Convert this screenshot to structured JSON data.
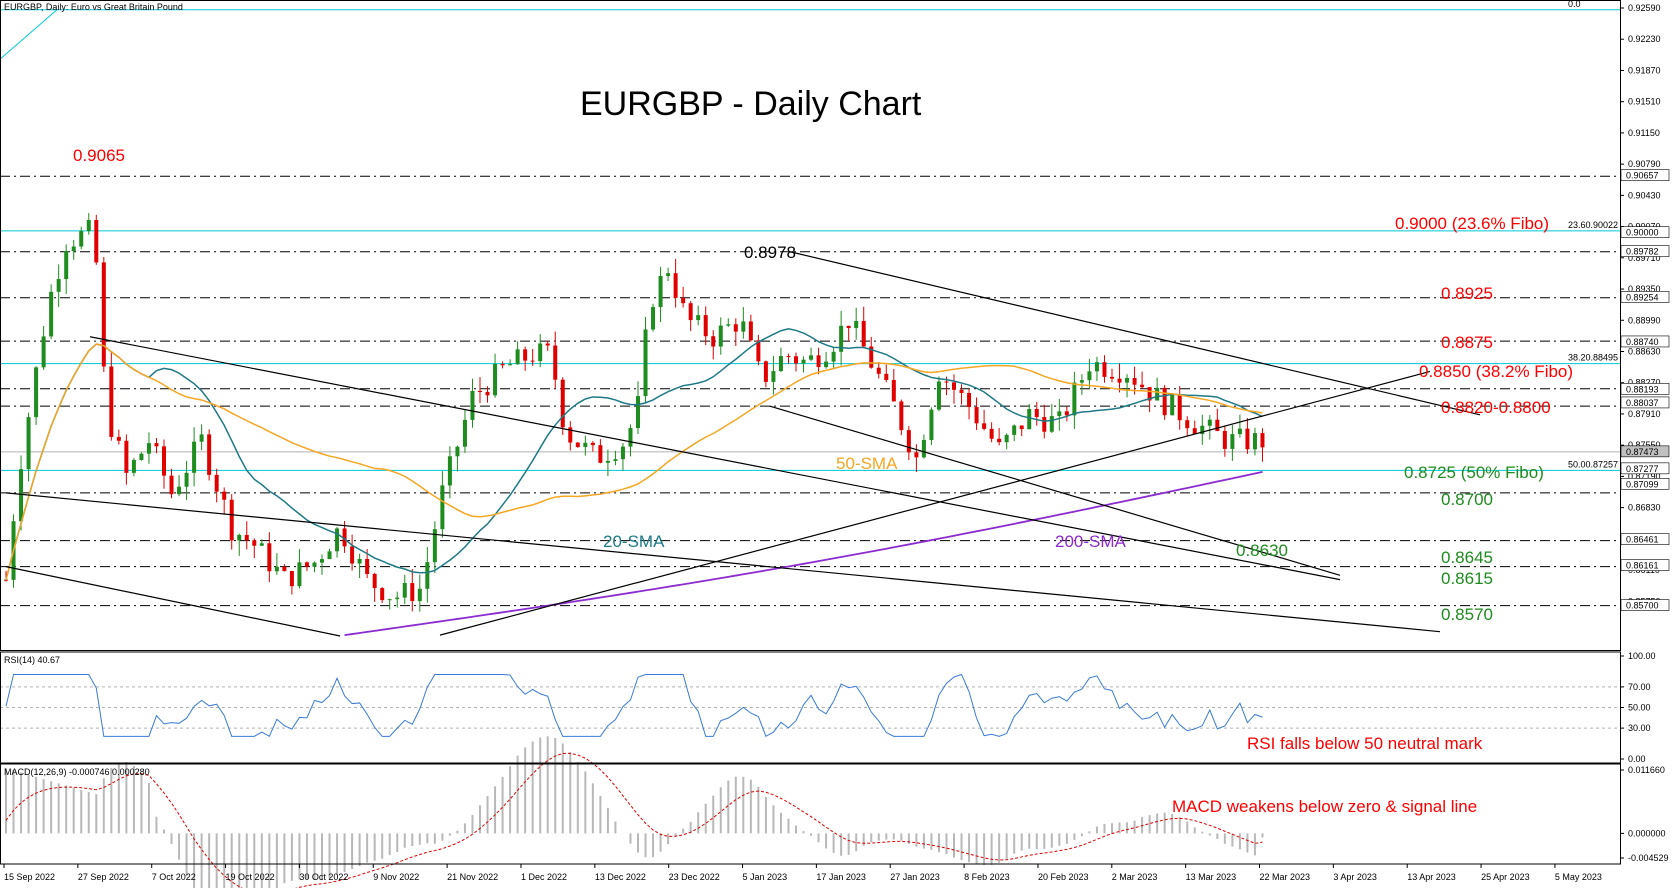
{
  "chart_data": [
    {
      "type": "candlestick",
      "header": "EURGBP, Daily:  Euro vs Great Britain Pound",
      "title": "EURGBP - Daily Chart",
      "ylim": [
        0.8535,
        0.9259
      ],
      "y_ticks": [
        "0.92590",
        "0.92230",
        "0.91870",
        "0.91510",
        "0.91150",
        "0.90790",
        "0.90430",
        "0.90070",
        "0.89710",
        "0.89350",
        "0.88990",
        "0.88630",
        "0.88270",
        "0.87910",
        "0.87550",
        "0.87190",
        "0.86830",
        "0.86470",
        "0.86110",
        "0.85750"
      ],
      "x_ticks": [
        "15 Sep 2022",
        "27 Sep 2022",
        "7 Oct 2022",
        "19 Oct 2022",
        "30 Oct 2022",
        "9 Nov 2022",
        "21 Nov 2022",
        "1 Dec 2022",
        "13 Dec 2022",
        "23 Dec 2022",
        "5 Jan 2023",
        "17 Jan 2023",
        "27 Jan 2023",
        "8 Feb 2023",
        "20 Feb 2023",
        "2 Mar 2023",
        "13 Mar 2023",
        "22 Mar 2023",
        "3 Apr 2023",
        "13 Apr 2023",
        "25 Apr 2023",
        "5 May 2023"
      ],
      "price_labels": [
        {
          "text": "0.90657",
          "value": 0.90657,
          "bg": "#ffffff"
        },
        {
          "text": "0.90000",
          "value": 0.9,
          "bg": "#ffffff"
        },
        {
          "text": "0.89782",
          "value": 0.89782,
          "bg": "#ffffff"
        },
        {
          "text": "0.89254",
          "value": 0.89254,
          "bg": "#ffffff"
        },
        {
          "text": "0.88740",
          "value": 0.8874,
          "bg": "#ffffff"
        },
        {
          "text": "0.88193",
          "value": 0.88193,
          "bg": "#ffffff"
        },
        {
          "text": "0.88037",
          "value": 0.88037,
          "bg": "#ffffff"
        },
        {
          "text": "0.87473",
          "value": 0.87473,
          "bg": "#c0c0c0"
        },
        {
          "text": "0.87277",
          "value": 0.87277,
          "bg": "#ffffff"
        },
        {
          "text": "0.87099",
          "value": 0.87099,
          "bg": "#ffffff"
        },
        {
          "text": "0.86461",
          "value": 0.86461,
          "bg": "#ffffff"
        },
        {
          "text": "0.86161",
          "value": 0.86161,
          "bg": "#ffffff"
        },
        {
          "text": "0.85700",
          "value": 0.857,
          "bg": "#ffffff"
        }
      ],
      "support_resistance": [
        0.9065,
        0.8978,
        0.8925,
        0.8875,
        0.882,
        0.88,
        0.87,
        0.8645,
        0.8615,
        0.857
      ],
      "fibo_levels": [
        {
          "value": 0.9257,
          "label": "0.0"
        },
        {
          "value": 0.9002,
          "label": "23.60.90022"
        },
        {
          "value": 0.8849,
          "label": "38.20.88495"
        },
        {
          "value": 0.8726,
          "label": "50.00.87257"
        }
      ],
      "annotations": [
        {
          "text": "0.9065",
          "color": "#ff0000"
        },
        {
          "text": "0.8978",
          "color": "#000000"
        },
        {
          "text": "0.9000 (23.6% Fibo)",
          "color": "#ff0000"
        },
        {
          "text": "0.8925",
          "color": "#ff0000"
        },
        {
          "text": "0.8875",
          "color": "#ff0000"
        },
        {
          "text": "0.8850 (38.2% Fibo)",
          "color": "#ff0000"
        },
        {
          "text": "0.8820-0.8800",
          "color": "#ff0000"
        },
        {
          "text": "0.8725 (50% Fibo)",
          "color": "#1e8c1e"
        },
        {
          "text": "0.8700",
          "color": "#1e8c1e"
        },
        {
          "text": "0.8630",
          "color": "#1e8c1e"
        },
        {
          "text": "0.8645",
          "color": "#1e8c1e"
        },
        {
          "text": "0.8615",
          "color": "#1e8c1e"
        },
        {
          "text": "0.8570",
          "color": "#1e8c1e"
        }
      ],
      "ma_labels": [
        {
          "text": "50-SMA",
          "color": "#f5a623"
        },
        {
          "text": "20-SMA",
          "color": "#1e7a86"
        },
        {
          "text": "200-SMA",
          "color": "#8c2bd0"
        }
      ],
      "colors": {
        "up": "#1e8c1e",
        "down": "#e00000",
        "sma20": "#1e7a86",
        "sma50": "#f5a623",
        "sma200": "#8c2bd0",
        "fibo": "#00c8d8"
      }
    },
    {
      "type": "line",
      "header": "RSI(14) 40.67",
      "ylim": [
        0,
        100
      ],
      "y_ticks": [
        "100.00",
        "70.00",
        "50.00",
        "30.00",
        "0.00"
      ],
      "annotation": "RSI falls below 50 neutral mark",
      "last_value": 40.67,
      "color": "#3a7bd5"
    },
    {
      "type": "bar",
      "header": "MACD(12,26,9) -0.000746 0.000280",
      "ylim": [
        -0.004529,
        0.01166
      ],
      "y_ticks": [
        "0.011660",
        "0.000000",
        "-0.004529"
      ],
      "annotation": "MACD weakens below zero & signal line",
      "histogram_color": "#b8b8b8",
      "signal_color": "#e00000"
    }
  ]
}
